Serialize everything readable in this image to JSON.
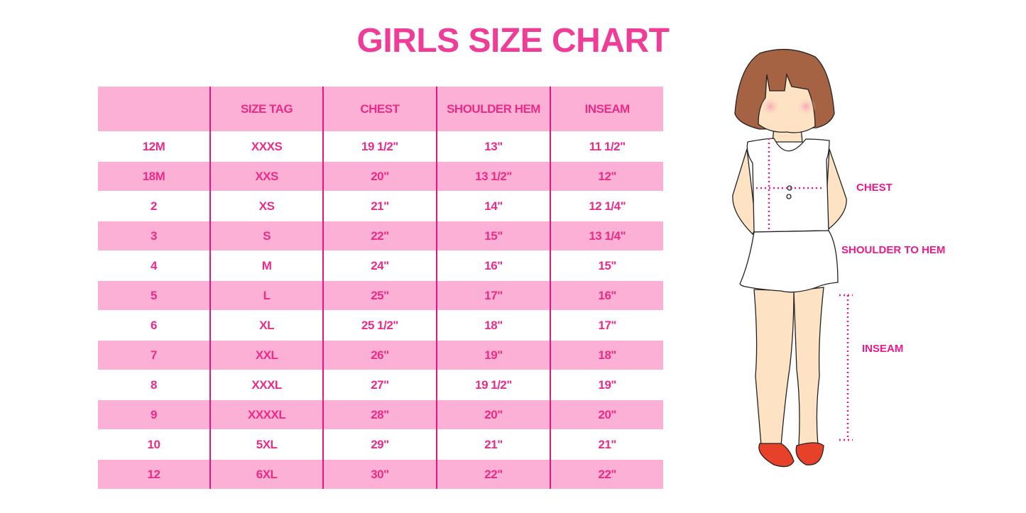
{
  "title": "GIRLS SIZE CHART",
  "table": {
    "headers": [
      "",
      "SIZE TAG",
      "CHEST",
      "SHOULDER HEM",
      "INSEAM"
    ],
    "rows": [
      [
        "12M",
        "XXXS",
        "19 1/2\"",
        "13\"",
        "11 1/2\""
      ],
      [
        "18M",
        "XXS",
        "20\"",
        "13 1/2\"",
        "12\""
      ],
      [
        "2",
        "XS",
        "21\"",
        "14\"",
        "12 1/4\""
      ],
      [
        "3",
        "S",
        "22\"",
        "15\"",
        "13 1/4\""
      ],
      [
        "4",
        "M",
        "24\"",
        "16\"",
        "15\""
      ],
      [
        "5",
        "L",
        "25\"",
        "17\"",
        "16\""
      ],
      [
        "6",
        "XL",
        "25 1/2\"",
        "18\"",
        "17\""
      ],
      [
        "7",
        "XXL",
        "26\"",
        "19\"",
        "18\""
      ],
      [
        "8",
        "XXXL",
        "27\"",
        "19 1/2\"",
        "19\""
      ],
      [
        "9",
        "XXXXL",
        "28\"",
        "20\"",
        "20\""
      ],
      [
        "10",
        "5XL",
        "29\"",
        "21\"",
        "21\""
      ],
      [
        "12",
        "6XL",
        "30\"",
        "22\"",
        "22\""
      ]
    ]
  },
  "illustration": {
    "labels": {
      "chest": "CHEST",
      "shoulder_to_hem": "SHOULDER TO HEM",
      "inseam": "INSEAM"
    }
  },
  "colors": {
    "accent": "#ef3d97",
    "row_pink": "#fdb0d5",
    "divider": "#e3177f"
  }
}
